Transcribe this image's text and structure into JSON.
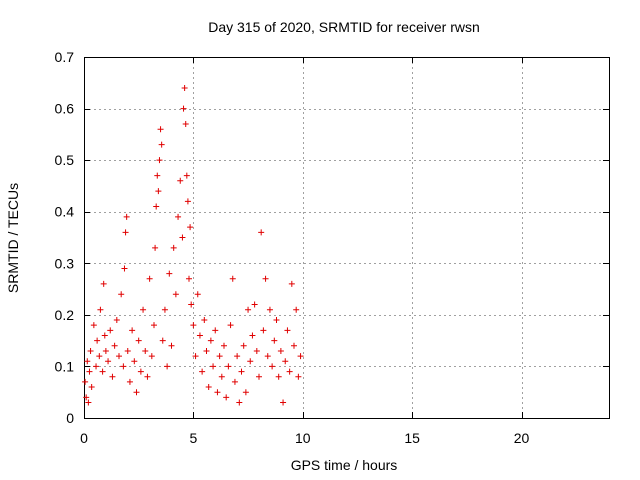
{
  "chart_data": {
    "type": "scatter",
    "title": "Day 315 of 2020, SRMTID for receiver rwsn",
    "xlabel": "GPS time / hours",
    "ylabel": "SRMTID / TECUs",
    "xlim": [
      0,
      24
    ],
    "ylim": [
      0,
      0.7
    ],
    "xticks": [
      0,
      5,
      10,
      15,
      20
    ],
    "xtick_labels": [
      "0",
      "5",
      "10",
      "15",
      "20"
    ],
    "yticks": [
      0,
      0.1,
      0.2,
      0.3,
      0.4,
      0.5,
      0.6,
      0.7
    ],
    "ytick_labels": [
      "0",
      "0.1",
      "0.2",
      "0.3",
      "0.4",
      "0.5",
      "0.6",
      "0.7"
    ],
    "grid": true,
    "marker": "+",
    "marker_color": "#e00000",
    "series": [
      {
        "name": "SRMTID",
        "x": [
          0.05,
          0.1,
          0.15,
          0.2,
          0.25,
          0.3,
          0.35,
          0.45,
          0.55,
          0.6,
          0.7,
          0.75,
          0.85,
          0.9,
          0.95,
          1.0,
          1.1,
          1.2,
          1.3,
          1.4,
          1.5,
          1.6,
          1.7,
          1.8,
          1.85,
          1.9,
          1.95,
          2.0,
          2.1,
          2.2,
          2.3,
          2.4,
          2.5,
          2.6,
          2.7,
          2.8,
          2.9,
          3.0,
          3.1,
          3.2,
          3.25,
          3.3,
          3.35,
          3.4,
          3.45,
          3.5,
          3.55,
          3.6,
          3.7,
          3.8,
          3.9,
          4.0,
          4.1,
          4.2,
          4.3,
          4.4,
          4.5,
          4.55,
          4.6,
          4.65,
          4.7,
          4.75,
          4.8,
          4.85,
          4.9,
          5.0,
          5.1,
          5.2,
          5.3,
          5.4,
          5.5,
          5.6,
          5.7,
          5.8,
          5.9,
          6.0,
          6.1,
          6.2,
          6.3,
          6.4,
          6.5,
          6.6,
          6.7,
          6.8,
          6.9,
          7.0,
          7.1,
          7.2,
          7.3,
          7.4,
          7.5,
          7.6,
          7.7,
          7.8,
          7.9,
          8.0,
          8.1,
          8.2,
          8.3,
          8.4,
          8.5,
          8.6,
          8.7,
          8.8,
          8.9,
          9.0,
          9.1,
          9.2,
          9.3,
          9.4,
          9.5,
          9.6,
          9.7,
          9.8,
          9.9
        ],
        "y": [
          0.07,
          0.04,
          0.11,
          0.03,
          0.09,
          0.13,
          0.06,
          0.18,
          0.1,
          0.15,
          0.12,
          0.21,
          0.09,
          0.26,
          0.16,
          0.13,
          0.11,
          0.17,
          0.08,
          0.14,
          0.19,
          0.12,
          0.24,
          0.1,
          0.29,
          0.36,
          0.39,
          0.13,
          0.07,
          0.17,
          0.11,
          0.05,
          0.15,
          0.09,
          0.21,
          0.13,
          0.08,
          0.27,
          0.12,
          0.18,
          0.33,
          0.41,
          0.47,
          0.44,
          0.5,
          0.56,
          0.53,
          0.15,
          0.21,
          0.1,
          0.28,
          0.14,
          0.33,
          0.24,
          0.39,
          0.46,
          0.35,
          0.6,
          0.64,
          0.57,
          0.47,
          0.42,
          0.27,
          0.37,
          0.22,
          0.18,
          0.12,
          0.24,
          0.16,
          0.09,
          0.19,
          0.13,
          0.06,
          0.15,
          0.1,
          0.17,
          0.05,
          0.12,
          0.08,
          0.14,
          0.04,
          0.1,
          0.18,
          0.27,
          0.07,
          0.12,
          0.03,
          0.09,
          0.14,
          0.05,
          0.21,
          0.11,
          0.16,
          0.22,
          0.13,
          0.08,
          0.36,
          0.17,
          0.27,
          0.12,
          0.21,
          0.1,
          0.15,
          0.19,
          0.08,
          0.13,
          0.03,
          0.11,
          0.17,
          0.09,
          0.26,
          0.14,
          0.21,
          0.08,
          0.12
        ]
      }
    ]
  }
}
